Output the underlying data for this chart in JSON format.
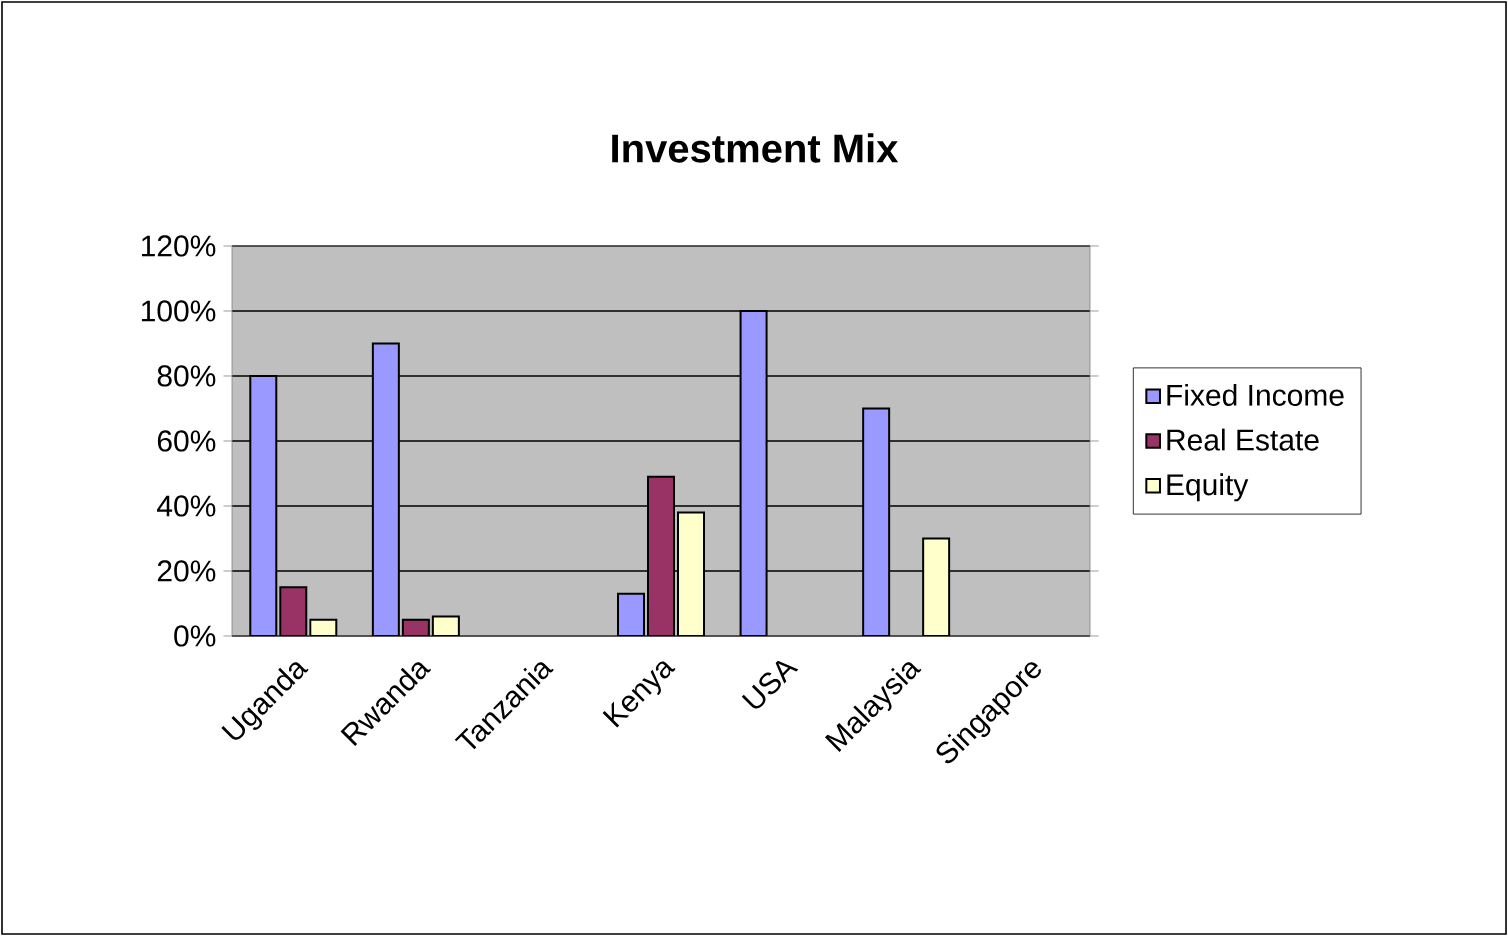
{
  "chart_data": {
    "type": "bar",
    "title": "Investment Mix",
    "categories": [
      "Uganda",
      "Rwanda",
      "Tanzania",
      "Kenya",
      "USA",
      "Malaysia",
      "Singapore"
    ],
    "series": [
      {
        "name": "Fixed Income",
        "color": "#9999ff",
        "values": [
          80,
          90,
          null,
          13,
          100,
          70,
          null
        ]
      },
      {
        "name": "Real Estate",
        "color": "#993366",
        "values": [
          15,
          5,
          null,
          49,
          null,
          null,
          null
        ]
      },
      {
        "name": "Equity",
        "color": "#ffffcc",
        "values": [
          5,
          6,
          null,
          38,
          null,
          30,
          null
        ]
      }
    ],
    "ylim": [
      0,
      120
    ],
    "yticks": [
      {
        "value": 0,
        "label": "0%"
      },
      {
        "value": 20,
        "label": "20%"
      },
      {
        "value": 40,
        "label": "40%"
      },
      {
        "value": 60,
        "label": "60%"
      },
      {
        "value": 80,
        "label": "80%"
      },
      {
        "value": 100,
        "label": "100%"
      },
      {
        "value": 120,
        "label": "120%"
      }
    ],
    "grid": "y",
    "legend": "right"
  }
}
